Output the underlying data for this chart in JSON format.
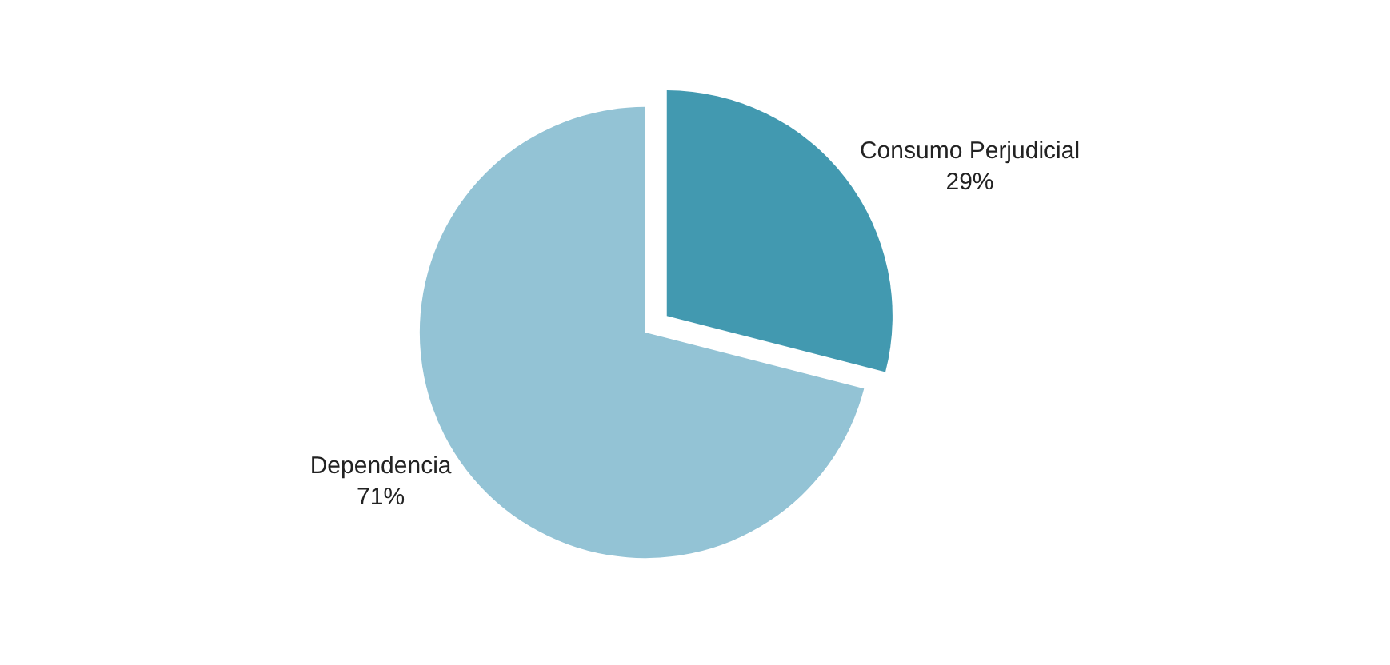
{
  "chart_data": {
    "type": "pie",
    "categories": [
      "Consumo Perjudicial",
      "Dependencia"
    ],
    "values": [
      29,
      71
    ],
    "value_labels": [
      "29%",
      "71%"
    ],
    "colors": [
      "#4299b0",
      "#93c3d5"
    ],
    "legend": false
  }
}
